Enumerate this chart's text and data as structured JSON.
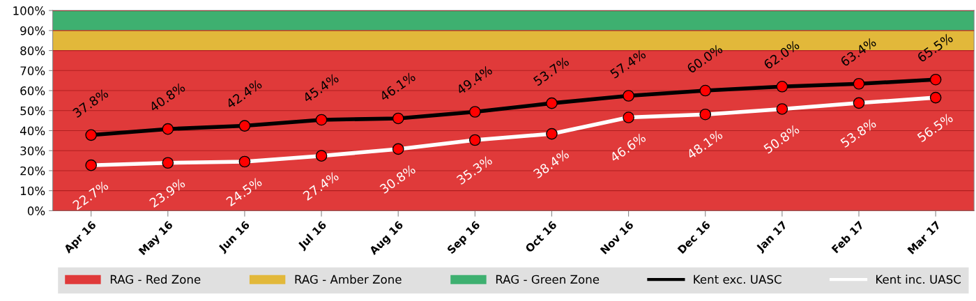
{
  "chart_data": {
    "type": "line",
    "categories": [
      "Apr 16",
      "May 16",
      "Jun 16",
      "Jul 16",
      "Aug 16",
      "Sep 16",
      "Oct 16",
      "Nov 16",
      "Dec 16",
      "Jan 17",
      "Feb 17",
      "Mar 17"
    ],
    "series": [
      {
        "name": "Kent exc. UASC",
        "color": "#000000",
        "values": [
          37.8,
          40.8,
          42.4,
          45.4,
          46.1,
          49.4,
          53.7,
          57.4,
          60.0,
          62.0,
          63.4,
          65.5
        ],
        "value_labels": [
          "37.8%",
          "40.8%",
          "42.4%",
          "45.4%",
          "46.1%",
          "49.4%",
          "53.7%",
          "57.4%",
          "60.0%",
          "62.0%",
          "63.4%",
          "65.5%"
        ]
      },
      {
        "name": "Kent inc. UASC",
        "color": "#ffffff",
        "values": [
          22.7,
          23.9,
          24.5,
          27.4,
          30.8,
          35.3,
          38.4,
          46.6,
          48.1,
          50.8,
          53.8,
          56.5
        ],
        "value_labels": [
          "22.7%",
          "23.9%",
          "24.5%",
          "27.4%",
          "30.8%",
          "35.3%",
          "38.4%",
          "46.6%",
          "48.1%",
          "50.8%",
          "53.8%",
          "56.5%"
        ]
      }
    ],
    "bands": [
      {
        "axis": "y",
        "from": 0,
        "to": 80,
        "label": "RAG - Red Zone",
        "color": "#e03a3a"
      },
      {
        "axis": "y",
        "from": 80,
        "to": 90,
        "label": "RAG - Amber Zone",
        "color": "#e2b83a"
      },
      {
        "axis": "y",
        "from": 90,
        "to": 100,
        "label": "RAG - Green Zone",
        "color": "#3eb070"
      }
    ],
    "ylim": [
      0,
      100
    ],
    "yticks": [
      {
        "value": 0,
        "label": "0%"
      },
      {
        "value": 10,
        "label": "10%"
      },
      {
        "value": 20,
        "label": "20%"
      },
      {
        "value": 30,
        "label": "30%"
      },
      {
        "value": 40,
        "label": "40%"
      },
      {
        "value": 50,
        "label": "50%"
      },
      {
        "value": 60,
        "label": "60%"
      },
      {
        "value": 70,
        "label": "70%"
      },
      {
        "value": 80,
        "label": "80%"
      },
      {
        "value": 90,
        "label": "90%"
      },
      {
        "value": 100,
        "label": "100%"
      }
    ],
    "grid": "y",
    "legend": "bottom",
    "marker": "circle",
    "line_style": "solid"
  }
}
